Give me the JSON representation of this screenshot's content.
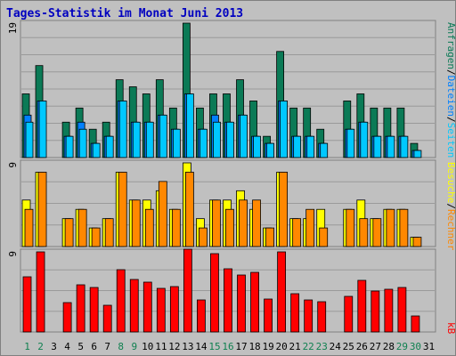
{
  "title": "Tages-Statistik im Monat Juni 2013",
  "colors": {
    "background": "#c0c0c0",
    "grid": "#9a9a9a",
    "title": "#0000c0",
    "anfragen": "#0b7a56",
    "dateien": "#0080ff",
    "seiten": "#00c8ff",
    "besuche": "#ffff00",
    "rechner": "#ff8800",
    "kb": "#ff0000",
    "weekday": "#000000",
    "weekend": "#108050"
  },
  "chart_data": [
    {
      "type": "bar",
      "panel": "top",
      "ymax_label": "19",
      "ylim": [
        0,
        19
      ],
      "categories": [
        "1",
        "2",
        "3",
        "4",
        "5",
        "6",
        "7",
        "8",
        "9",
        "10",
        "11",
        "12",
        "13",
        "14",
        "15",
        "16",
        "17",
        "18",
        "19",
        "20",
        "21",
        "22",
        "23",
        "24",
        "25",
        "26",
        "27",
        "28",
        "29",
        "30",
        "31"
      ],
      "series": [
        {
          "name": "Anfragen",
          "color_key": "anfragen",
          "values": [
            9,
            13,
            0,
            5,
            7,
            4,
            5,
            11,
            10,
            9,
            11,
            7,
            19,
            7,
            9,
            9,
            11,
            8,
            3,
            15,
            7,
            7,
            4,
            0,
            8,
            9,
            7,
            7,
            7,
            2,
            0
          ]
        },
        {
          "name": "Dateien",
          "color_key": "dateien",
          "values": [
            6,
            8,
            0,
            3,
            5,
            2,
            3,
            8,
            5,
            5,
            6,
            4,
            9,
            4,
            6,
            5,
            6,
            3,
            2,
            8,
            3,
            3,
            2,
            0,
            4,
            5,
            3,
            3,
            3,
            1,
            0
          ]
        },
        {
          "name": "Seiten",
          "color_key": "seiten",
          "values": [
            5,
            8,
            0,
            3,
            4,
            2,
            3,
            8,
            5,
            5,
            6,
            4,
            9,
            4,
            5,
            5,
            6,
            3,
            2,
            8,
            3,
            3,
            2,
            0,
            4,
            5,
            3,
            3,
            3,
            1,
            0
          ]
        }
      ]
    },
    {
      "type": "bar",
      "panel": "middle",
      "ymax_label": "9",
      "ylim": [
        0,
        9
      ],
      "categories": [
        "1",
        "2",
        "3",
        "4",
        "5",
        "6",
        "7",
        "8",
        "9",
        "10",
        "11",
        "12",
        "13",
        "14",
        "15",
        "16",
        "17",
        "18",
        "19",
        "20",
        "21",
        "22",
        "23",
        "24",
        "25",
        "26",
        "27",
        "28",
        "29",
        "30",
        "31"
      ],
      "series": [
        {
          "name": "Besuche",
          "color_key": "besuche",
          "values": [
            5,
            8,
            0,
            3,
            4,
            2,
            3,
            8,
            5,
            5,
            6,
            4,
            9,
            3,
            5,
            5,
            6,
            4,
            2,
            8,
            3,
            3,
            4,
            0,
            4,
            5,
            3,
            4,
            4,
            1,
            0
          ]
        },
        {
          "name": "Rechner",
          "color_key": "rechner",
          "values": [
            4,
            8,
            0,
            3,
            4,
            2,
            3,
            8,
            5,
            4,
            7,
            4,
            8,
            2,
            5,
            4,
            5,
            5,
            2,
            8,
            3,
            4,
            2,
            0,
            4,
            3,
            3,
            4,
            4,
            1,
            0
          ]
        }
      ]
    },
    {
      "type": "bar",
      "panel": "bottom",
      "ymax_label": "9",
      "ylim": [
        0,
        9
      ],
      "categories": [
        "1",
        "2",
        "3",
        "4",
        "5",
        "6",
        "7",
        "8",
        "9",
        "10",
        "11",
        "12",
        "13",
        "14",
        "15",
        "16",
        "17",
        "18",
        "19",
        "20",
        "21",
        "22",
        "23",
        "24",
        "25",
        "26",
        "27",
        "28",
        "29",
        "30",
        "31"
      ],
      "series": [
        {
          "name": "kB",
          "color_key": "kb",
          "values": [
            6.2,
            9.0,
            0,
            3.3,
            5.3,
            5.0,
            3.0,
            7.0,
            5.9,
            5.6,
            4.9,
            5.1,
            9.3,
            3.6,
            8.8,
            7.1,
            6.4,
            6.7,
            3.7,
            9.0,
            4.3,
            3.6,
            3.4,
            0,
            4.0,
            5.8,
            4.6,
            4.8,
            5.0,
            1.8,
            0
          ]
        }
      ]
    }
  ],
  "x_axis": {
    "labels": [
      "1",
      "2",
      "3",
      "4",
      "5",
      "6",
      "7",
      "8",
      "9",
      "10",
      "11",
      "12",
      "13",
      "14",
      "15",
      "16",
      "17",
      "18",
      "19",
      "20",
      "21",
      "22",
      "23",
      "24",
      "25",
      "26",
      "27",
      "28",
      "29",
      "30",
      "31"
    ],
    "weekend": [
      1,
      2,
      8,
      9,
      15,
      16,
      22,
      23,
      29,
      30
    ]
  },
  "right_legend": {
    "top": [
      {
        "text": "Anfragen",
        "color_key": "anfragen"
      },
      {
        "text": "/",
        "color_key": "weekday"
      },
      {
        "text": "Dateien",
        "color_key": "dateien"
      },
      {
        "text": "/",
        "color_key": "weekday"
      },
      {
        "text": "Seiten",
        "color_key": "seiten"
      }
    ],
    "middle": [
      {
        "text": "Besuche",
        "color_key": "besuche"
      },
      {
        "text": "/",
        "color_key": "weekday"
      },
      {
        "text": "Rechner",
        "color_key": "rechner"
      }
    ],
    "bottom": [
      {
        "text": "kB",
        "color_key": "kb"
      }
    ]
  }
}
